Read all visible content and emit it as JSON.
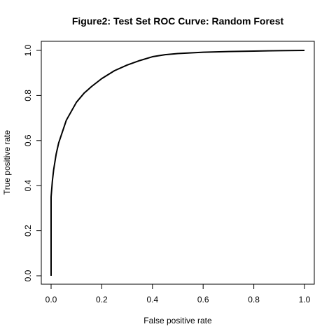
{
  "chart_data": {
    "type": "line",
    "title": "Figure2: Test Set ROC Curve: Random Forest",
    "xlabel": "False positive rate",
    "ylabel": "True positive rate",
    "xlim": [
      0,
      1
    ],
    "ylim": [
      0,
      1
    ],
    "x_ticks": [
      "0.0",
      "0.2",
      "0.4",
      "0.6",
      "0.8",
      "1.0"
    ],
    "y_ticks": [
      "0.0",
      "0.2",
      "0.4",
      "0.6",
      "0.8",
      "1.0"
    ],
    "grid": false,
    "legend": "none",
    "line_color": "#000000",
    "series": [
      {
        "x": [
          0.0,
          0.0,
          0.005,
          0.01,
          0.02,
          0.03,
          0.045,
          0.06,
          0.08,
          0.1,
          0.13,
          0.16,
          0.2,
          0.25,
          0.3,
          0.35,
          0.4,
          0.45,
          0.5,
          0.6,
          0.7,
          0.8,
          0.9,
          1.0
        ],
        "y": [
          0.0,
          0.35,
          0.42,
          0.47,
          0.54,
          0.59,
          0.64,
          0.69,
          0.73,
          0.77,
          0.81,
          0.84,
          0.875,
          0.91,
          0.935,
          0.955,
          0.972,
          0.981,
          0.986,
          0.992,
          0.995,
          0.997,
          0.999,
          1.0
        ]
      }
    ]
  }
}
